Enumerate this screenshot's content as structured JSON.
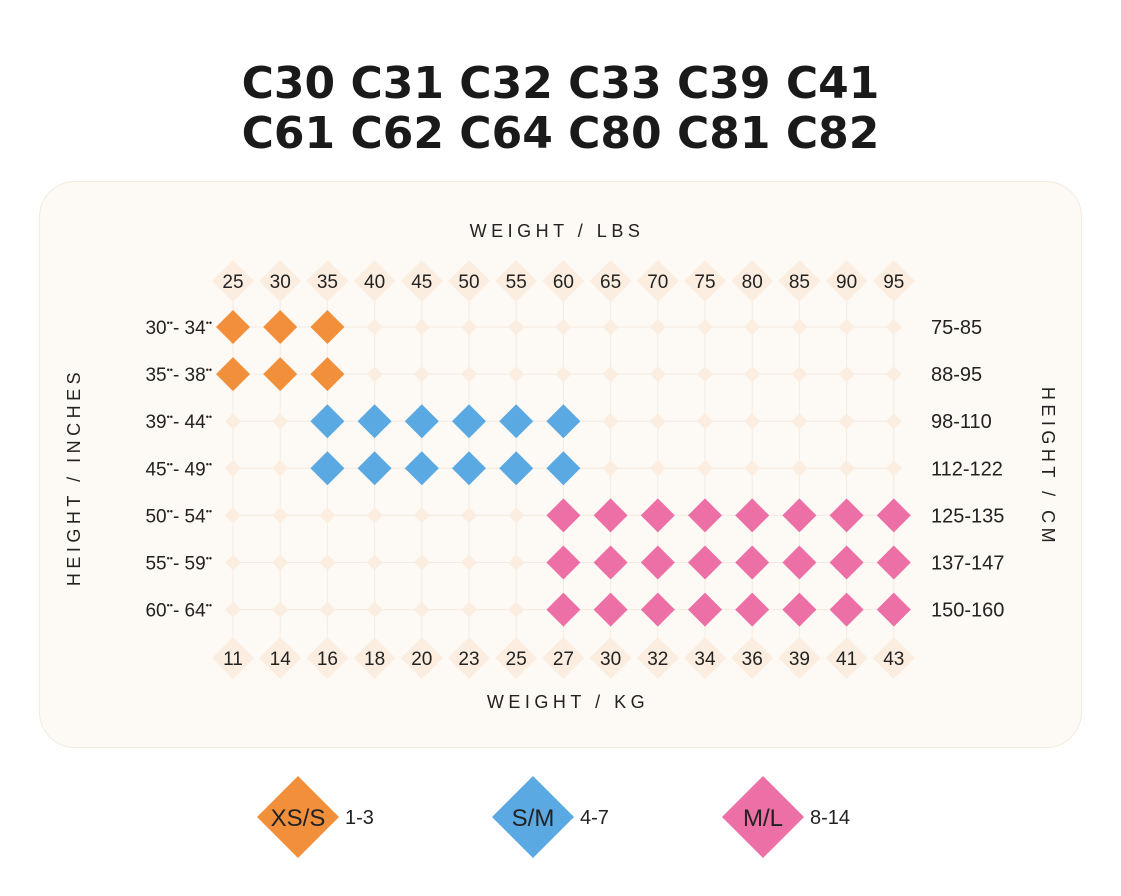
{
  "title_lines": [
    "C30 C31 C32 C33 C39 C41",
    "C61 C62 C64 C80 C81 C82"
  ],
  "colors": {
    "panel": "#fdf9f4",
    "grid_diamond": "#fbeee0",
    "grid_line": "#f4ebe0",
    "xs_s": "#f18f3b",
    "s_m": "#5aa9e3",
    "m_l": "#ec6fa6",
    "text": "#222222"
  },
  "chart_data": {
    "type": "heatmap",
    "x_top_label": "WEIGHT / LBS",
    "x_bottom_label": "WEIGHT / KG",
    "y_left_label": "HEIGHT / INCHES",
    "y_right_label": "HEIGHT / CM",
    "weight_lbs": [
      "25",
      "30",
      "35",
      "40",
      "45",
      "50",
      "55",
      "60",
      "65",
      "70",
      "75",
      "80",
      "85",
      "90",
      "95"
    ],
    "weight_kg": [
      "11",
      "14",
      "16",
      "18",
      "20",
      "23",
      "25",
      "27",
      "30",
      "32",
      "34",
      "36",
      "39",
      "41",
      "43"
    ],
    "height_inches": [
      {
        "from": "30",
        "to": "34"
      },
      {
        "from": "35",
        "to": "38"
      },
      {
        "from": "39",
        "to": "44"
      },
      {
        "from": "45",
        "to": "49"
      },
      {
        "from": "50",
        "to": "54"
      },
      {
        "from": "55",
        "to": "59"
      },
      {
        "from": "60",
        "to": "64"
      }
    ],
    "height_cm": [
      "75-85",
      "88-95",
      "98-110",
      "112-122",
      "125-135",
      "137-147",
      "150-160"
    ],
    "sizes": [
      {
        "code": "XS/S",
        "range": "1-3",
        "color": "#f18f3b"
      },
      {
        "code": "S/M",
        "range": "4-7",
        "color": "#5aa9e3"
      },
      {
        "code": "M/L",
        "range": "8-14",
        "color": "#ec6fa6"
      }
    ],
    "cells": [
      [
        0,
        0,
        0,
        null,
        null,
        null,
        null,
        null,
        null,
        null,
        null,
        null,
        null,
        null,
        null
      ],
      [
        0,
        0,
        0,
        null,
        null,
        null,
        null,
        null,
        null,
        null,
        null,
        null,
        null,
        null,
        null
      ],
      [
        null,
        null,
        1,
        1,
        1,
        1,
        1,
        1,
        null,
        null,
        null,
        null,
        null,
        null,
        null
      ],
      [
        null,
        null,
        1,
        1,
        1,
        1,
        1,
        1,
        null,
        null,
        null,
        null,
        null,
        null,
        null
      ],
      [
        null,
        null,
        null,
        null,
        null,
        null,
        null,
        2,
        2,
        2,
        2,
        2,
        2,
        2,
        2
      ],
      [
        null,
        null,
        null,
        null,
        null,
        null,
        null,
        2,
        2,
        2,
        2,
        2,
        2,
        2,
        2
      ],
      [
        null,
        null,
        null,
        null,
        null,
        null,
        null,
        2,
        2,
        2,
        2,
        2,
        2,
        2,
        2
      ]
    ]
  }
}
